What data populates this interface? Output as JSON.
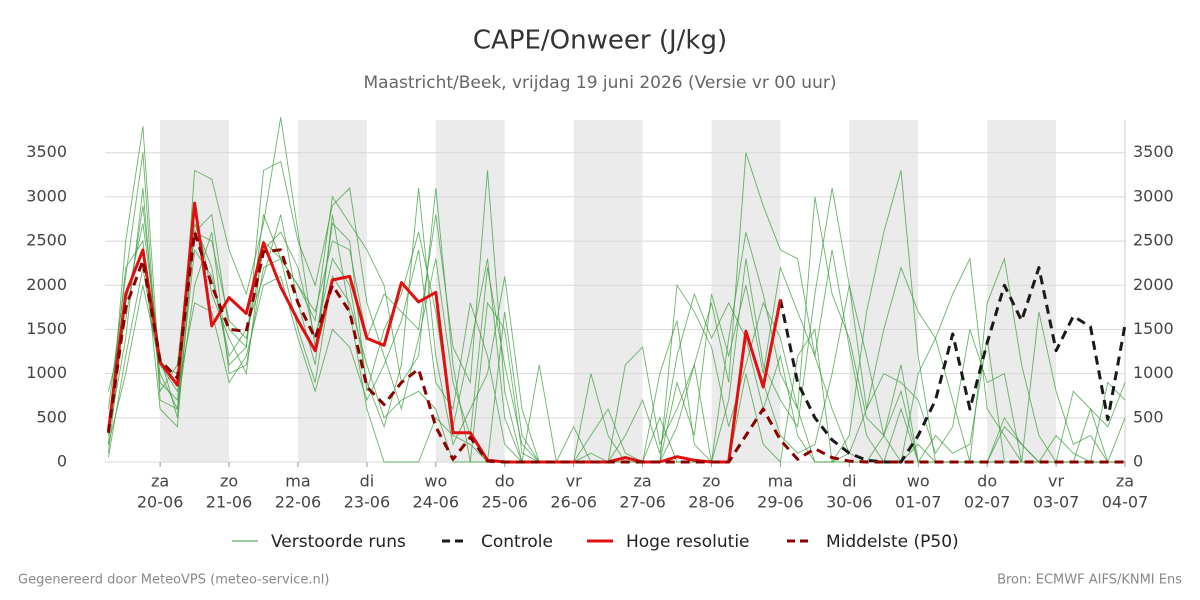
{
  "chart_data": {
    "type": "line",
    "title": "CAPE/Onweer (J/kg)",
    "subtitle": "Maastricht/Beek, vrijdag 19 juni 2026 (Versie vr 00 uur)",
    "credits": [
      "Gegenereerd door MeteoVPS (meteo-service.nl)",
      "Bron: ECMWF AIFS/KNMI Ens"
    ],
    "x": [
      0.25,
      0.5,
      0.75,
      1,
      1.25,
      1.5,
      1.75,
      2,
      2.25,
      2.5,
      2.75,
      3,
      3.25,
      3.5,
      3.75,
      4,
      4.25,
      4.5,
      4.75,
      5,
      5.25,
      5.5,
      5.75,
      6,
      6.25,
      6.5,
      6.75,
      7,
      7.25,
      7.5,
      7.75,
      8,
      8.25,
      8.5,
      8.75,
      9,
      9.25,
      9.5,
      9.75,
      10,
      10.25,
      10.5,
      10.75,
      11,
      11.25,
      11.5,
      11.75,
      12,
      12.25,
      12.5,
      12.75,
      13,
      13.25,
      13.5,
      13.75,
      14,
      14.25,
      14.5,
      14.75,
      15
    ],
    "xlim": [
      0.2,
      15
    ],
    "xticks": [
      {
        "value": 1,
        "label": "20-06"
      },
      {
        "value": 2,
        "label": "21-06"
      },
      {
        "value": 3,
        "label": "22-06"
      },
      {
        "value": 4,
        "label": "23-06"
      },
      {
        "value": 5,
        "label": "24-06"
      },
      {
        "value": 6,
        "label": "25-06"
      },
      {
        "value": 7,
        "label": "26-06"
      },
      {
        "value": 8,
        "label": "27-06"
      },
      {
        "value": 9,
        "label": "28-06"
      },
      {
        "value": 10,
        "label": "29-06"
      },
      {
        "value": 11,
        "label": "30-06"
      },
      {
        "value": 12,
        "label": "01-07"
      },
      {
        "value": 13,
        "label": "02-07"
      },
      {
        "value": 14,
        "label": "03-07"
      },
      {
        "value": 15,
        "label": "04-07"
      }
    ],
    "xtick_weekdays": [
      "za",
      "zo",
      "ma",
      "di",
      "wo",
      "do",
      "vr",
      "za",
      "zo",
      "ma",
      "di",
      "wo",
      "do",
      "vr",
      "za"
    ],
    "ylim": [
      0,
      3870
    ],
    "yticks": [
      0,
      500,
      1000,
      1500,
      2000,
      2500,
      3000,
      3500
    ],
    "grid": true,
    "legend": "bottom",
    "series": [
      {
        "name": "Verstoorde runs",
        "color": "#3a9b3a",
        "members": [
          [
            200,
            2500,
            3800,
            900,
            700,
            2600,
            2800,
            1500,
            1300,
            3300,
            3400,
            2500,
            2000,
            2900,
            3100,
            1800,
            1200,
            600,
            1400,
            2300,
            900,
            300,
            2200,
            1100,
            200,
            0,
            0,
            0,
            300,
            600,
            100,
            0,
            0,
            400,
            1100,
            1800,
            900,
            3500,
            2900,
            2400,
            2300,
            1200,
            600,
            100,
            0,
            0,
            0,
            200,
            0,
            0,
            0,
            0,
            0,
            0,
            0,
            0,
            0,
            0,
            0,
            0
          ],
          [
            100,
            1800,
            2700,
            1200,
            500,
            3300,
            3200,
            2400,
            1900,
            2700,
            3900,
            2600,
            1300,
            2700,
            2500,
            800,
            1500,
            1900,
            2600,
            1700,
            400,
            1300,
            2300,
            500,
            0,
            0,
            0,
            0,
            0,
            0,
            0,
            0,
            1000,
            1600,
            200,
            0,
            1400,
            2600,
            1900,
            1000,
            600,
            0,
            0,
            300,
            1700,
            2600,
            3300,
            1200,
            0,
            0,
            0,
            0,
            500,
            200,
            0,
            0,
            0,
            0,
            0,
            0
          ],
          [
            600,
            2100,
            3500,
            700,
            600,
            2000,
            2600,
            1000,
            1100,
            2200,
            2300,
            2000,
            1600,
            3000,
            2700,
            2400,
            2000,
            900,
            1200,
            3100,
            1100,
            0,
            0,
            0,
            0,
            1100,
            0,
            0,
            0,
            0,
            0,
            0,
            0,
            0,
            0,
            0,
            700,
            2300,
            1100,
            700,
            400,
            1900,
            3100,
            2000,
            600,
            1000,
            900,
            700,
            100,
            400,
            1500,
            900,
            1000,
            0,
            0,
            0,
            0,
            0,
            0,
            0
          ],
          [
            300,
            1400,
            3100,
            800,
            1100,
            2900,
            1900,
            1400,
            1000,
            2500,
            2300,
            2000,
            1700,
            2500,
            2400,
            1400,
            1900,
            1700,
            1500,
            2800,
            1300,
            900,
            3300,
            800,
            0,
            0,
            0,
            0,
            0,
            0,
            300,
            700,
            100,
            1200,
            1900,
            1400,
            1800,
            1400,
            600,
            1200,
            300,
            0,
            0,
            100,
            600,
            1500,
            2200,
            1700,
            1400,
            1900,
            2300,
            600,
            300,
            0,
            0,
            0,
            800,
            600,
            0,
            0
          ],
          [
            800,
            1600,
            2900,
            1100,
            1000,
            2600,
            2500,
            1600,
            1400,
            2400,
            2600,
            2200,
            1400,
            2300,
            2000,
            900,
            400,
            1100,
            3100,
            1200,
            200,
            600,
            1000,
            2100,
            600,
            0,
            0,
            0,
            1000,
            300,
            0,
            0,
            0,
            900,
            300,
            1900,
            1200,
            2000,
            1000,
            2200,
            1700,
            1200,
            2400,
            1300,
            300,
            0,
            600,
            0,
            0,
            0,
            0,
            0,
            0,
            0,
            1700,
            800,
            200,
            300,
            0,
            0
          ],
          [
            50,
            1200,
            2200,
            1000,
            600,
            2400,
            2100,
            1200,
            1500,
            2100,
            2800,
            1800,
            1100,
            2800,
            1700,
            600,
            0,
            0,
            0,
            500,
            300,
            200,
            0,
            1700,
            300,
            0,
            0,
            400,
            0,
            0,
            0,
            0,
            500,
            0,
            0,
            0,
            0,
            1000,
            200,
            0,
            1200,
            1500,
            0,
            0,
            0,
            300,
            0,
            1000,
            1400,
            700,
            0,
            1800,
            2300,
            1100,
            300,
            0,
            0,
            0,
            900,
            700
          ],
          [
            400,
            2200,
            2500,
            600,
            400,
            2700,
            2200,
            1100,
            1300,
            2800,
            2300,
            1500,
            900,
            2100,
            1800,
            1100,
            500,
            700,
            800,
            600,
            0,
            0,
            1800,
            1500,
            100,
            0,
            0,
            0,
            100,
            0,
            0,
            0,
            0,
            2000,
            1700,
            1300,
            400,
            1100,
            1800,
            1400,
            600,
            3000,
            1900,
            1400,
            500,
            300,
            1100,
            0,
            0,
            0,
            0,
            0,
            400,
            200,
            0,
            0,
            0,
            600,
            400,
            900
          ],
          [
            200,
            1000,
            2000,
            1100,
            800,
            1800,
            1700,
            900,
            1200,
            2000,
            2100,
            1400,
            800,
            1500,
            1300,
            700,
            1100,
            1600,
            2400,
            900,
            600,
            1800,
            1200,
            200,
            0,
            0,
            0,
            0,
            0,
            0,
            1100,
            1300,
            200,
            600,
            1100,
            0,
            0,
            1500,
            900,
            300,
            100,
            200,
            1000,
            2000,
            1200,
            300,
            800,
            0,
            300,
            100,
            200,
            1400,
            0,
            0,
            0,
            300,
            100,
            0,
            0,
            500
          ]
        ]
      },
      {
        "name": "Controle",
        "color": "#1a1a1a",
        "dashed": true,
        "values": [
          null,
          null,
          null,
          null,
          null,
          null,
          null,
          null,
          null,
          null,
          null,
          null,
          null,
          null,
          null,
          null,
          null,
          null,
          null,
          null,
          null,
          null,
          null,
          null,
          null,
          null,
          null,
          null,
          null,
          null,
          null,
          null,
          null,
          null,
          null,
          null,
          null,
          null,
          null,
          1840,
          900,
          500,
          250,
          100,
          20,
          0,
          0,
          300,
          700,
          1450,
          600,
          1350,
          2000,
          1600,
          2200,
          1260,
          1650,
          1530,
          480,
          1550
        ]
      },
      {
        "name": "Hoge resolutie",
        "color": "#e01010",
        "dashed": false,
        "values": [
          350,
          1900,
          2400,
          1130,
          870,
          2930,
          1540,
          1860,
          1680,
          2480,
          1980,
          1600,
          1260,
          2060,
          2100,
          1400,
          1320,
          2030,
          1810,
          1920,
          330,
          330,
          20,
          0,
          0,
          0,
          0,
          0,
          0,
          0,
          50,
          0,
          0,
          60,
          20,
          0,
          0,
          1480,
          850,
          1840,
          null,
          null,
          null,
          null,
          null,
          null,
          null,
          null,
          null,
          null,
          null,
          null,
          null,
          null,
          null,
          null,
          null,
          null,
          null,
          null
        ]
      },
      {
        "name": "Middelste (P50)",
        "color": "#8b0000",
        "dashed": true,
        "values": [
          330,
          1750,
          2280,
          1150,
          950,
          2600,
          2000,
          1500,
          1480,
          2380,
          2400,
          1800,
          1400,
          2000,
          1700,
          850,
          650,
          900,
          1050,
          400,
          30,
          280,
          10,
          0,
          0,
          0,
          0,
          0,
          0,
          0,
          0,
          0,
          0,
          0,
          0,
          0,
          0,
          300,
          600,
          250,
          30,
          150,
          50,
          10,
          0,
          0,
          0,
          0,
          0,
          0,
          0,
          0,
          0,
          0,
          0,
          0,
          0,
          0,
          0,
          0
        ]
      }
    ]
  }
}
